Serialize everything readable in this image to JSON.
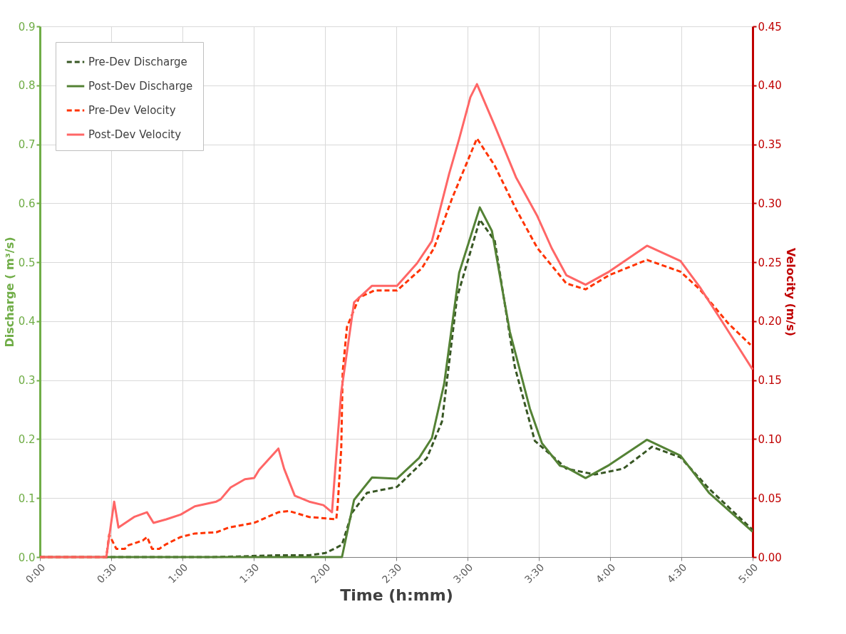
{
  "chart_data": {
    "type": "line",
    "xlabel": "Time (h:mm)",
    "ylabel": "Discharge ( m³/s)",
    "y2label": "Velocity (m/s)",
    "xlim": [
      0,
      5
    ],
    "xticks": [
      {
        "value": 0,
        "label": "0:00"
      },
      {
        "value": 0.5,
        "label": "0:30"
      },
      {
        "value": 1,
        "label": "1:00"
      },
      {
        "value": 1.5,
        "label": "1:30"
      },
      {
        "value": 2,
        "label": "2:00"
      },
      {
        "value": 2.5,
        "label": "2:30"
      },
      {
        "value": 3,
        "label": "3:00"
      },
      {
        "value": 3.5,
        "label": "3:30"
      },
      {
        "value": 4,
        "label": "4:00"
      },
      {
        "value": 4.5,
        "label": "4:30"
      },
      {
        "value": 5,
        "label": "5:00"
      }
    ],
    "ylim": [
      0,
      0.9
    ],
    "yticks": [
      {
        "value": 0,
        "label": "0.0"
      },
      {
        "value": 0.1,
        "label": "0.1"
      },
      {
        "value": 0.2,
        "label": "0.2"
      },
      {
        "value": 0.3,
        "label": "0.3"
      },
      {
        "value": 0.4,
        "label": "0.4"
      },
      {
        "value": 0.5,
        "label": "0.5"
      },
      {
        "value": 0.6,
        "label": "0.6"
      },
      {
        "value": 0.7,
        "label": "0.7"
      },
      {
        "value": 0.8,
        "label": "0.8"
      },
      {
        "value": 0.9,
        "label": "0.9"
      }
    ],
    "y2lim": [
      0,
      0.45
    ],
    "y2ticks": [
      {
        "value": 0,
        "label": "0.00"
      },
      {
        "value": 0.05,
        "label": "0.05"
      },
      {
        "value": 0.1,
        "label": "0.10"
      },
      {
        "value": 0.15,
        "label": "0.15"
      },
      {
        "value": 0.2,
        "label": "0.20"
      },
      {
        "value": 0.25,
        "label": "0.25"
      },
      {
        "value": 0.3,
        "label": "0.30"
      },
      {
        "value": 0.35,
        "label": "0.35"
      },
      {
        "value": 0.4,
        "label": "0.40"
      },
      {
        "value": 0.45,
        "label": "0.45"
      }
    ],
    "grid": true,
    "legend": "top left",
    "marker": "none",
    "series": [
      {
        "name": "Pre-Dev Discharge",
        "color": "#375623",
        "line_style": "dashed",
        "x": [
          0,
          1.2,
          1.388,
          1.653,
          1.889,
          2.004,
          2.089,
          2.119,
          2.189,
          2.295,
          2.505,
          2.715,
          2.821,
          2.926,
          3.086,
          3.191,
          3.332,
          3.472,
          3.648,
          3.693,
          3.893,
          4.093,
          4.294,
          4.494,
          4.694,
          5.0
        ],
        "values": [
          0,
          0,
          0.001,
          0.003,
          0.003,
          0.007,
          0.017,
          0.021,
          0.075,
          0.109,
          0.119,
          0.168,
          0.23,
          0.44,
          0.572,
          0.536,
          0.322,
          0.197,
          0.16,
          0.15,
          0.14,
          0.15,
          0.187,
          0.169,
          0.116,
          0.046
        ]
      },
      {
        "name": "Post-Dev Discharge",
        "color": "#548235",
        "line_style": "solid",
        "x": [
          0,
          2.119,
          2.204,
          2.33,
          2.505,
          2.66,
          2.75,
          2.836,
          2.941,
          3.086,
          3.171,
          3.297,
          3.437,
          3.522,
          3.648,
          3.693,
          3.828,
          3.993,
          4.259,
          4.494,
          4.694,
          5.0
        ],
        "values": [
          0,
          0,
          0.097,
          0.135,
          0.133,
          0.168,
          0.202,
          0.294,
          0.482,
          0.593,
          0.553,
          0.382,
          0.252,
          0.193,
          0.155,
          0.152,
          0.134,
          0.156,
          0.199,
          0.172,
          0.109,
          0.043
        ]
      },
      {
        "name": "Pre-Dev Velocity",
        "color": "#ff3300",
        "line_style": "dashed",
        "axis": "y2",
        "x": [
          0,
          0.466,
          0.486,
          0.536,
          0.596,
          0.621,
          0.721,
          0.752,
          0.787,
          0.837,
          0.887,
          0.987,
          1.087,
          1.237,
          1.323,
          1.503,
          1.673,
          1.748,
          1.889,
          2.079,
          2.089,
          2.114,
          2.124,
          2.154,
          2.239,
          2.345,
          2.505,
          2.68,
          2.765,
          2.891,
          3.066,
          3.19,
          3.34,
          3.49,
          3.693,
          3.828,
          3.993,
          4.259,
          4.494,
          4.629,
          4.83,
          4.985
        ],
        "values": [
          0,
          0,
          0.019,
          0.007,
          0.007,
          0.01,
          0.014,
          0.017,
          0.007,
          0.007,
          0.011,
          0.017,
          0.02,
          0.021,
          0.025,
          0.029,
          0.038,
          0.039,
          0.034,
          0.032,
          0.044,
          0.092,
          0.157,
          0.195,
          0.22,
          0.226,
          0.226,
          0.245,
          0.262,
          0.304,
          0.355,
          0.332,
          0.295,
          0.262,
          0.232,
          0.227,
          0.239,
          0.252,
          0.242,
          0.227,
          0.198,
          0.18
        ]
      },
      {
        "name": "Post-Dev Velocity",
        "color": "#ff6666",
        "line_style": "solid",
        "axis": "y2",
        "x": [
          0,
          0.466,
          0.521,
          0.551,
          0.661,
          0.751,
          0.797,
          0.887,
          0.987,
          1.087,
          1.237,
          1.268,
          1.338,
          1.438,
          1.503,
          1.538,
          1.673,
          1.713,
          1.788,
          1.889,
          1.989,
          2.049,
          2.079,
          2.114,
          2.204,
          2.33,
          2.505,
          2.645,
          2.75,
          2.871,
          2.94,
          3.02,
          3.066,
          3.19,
          3.34,
          3.49,
          3.59,
          3.693,
          3.828,
          3.993,
          4.259,
          4.494,
          4.629,
          4.795,
          5.0
        ],
        "values": [
          0,
          0,
          0.047,
          0.025,
          0.034,
          0.038,
          0.029,
          0.032,
          0.036,
          0.043,
          0.047,
          0.049,
          0.059,
          0.066,
          0.067,
          0.074,
          0.092,
          0.075,
          0.052,
          0.047,
          0.044,
          0.038,
          0.086,
          0.14,
          0.216,
          0.23,
          0.23,
          0.249,
          0.268,
          0.325,
          0.354,
          0.39,
          0.401,
          0.366,
          0.322,
          0.289,
          0.262,
          0.239,
          0.231,
          0.242,
          0.264,
          0.251,
          0.229,
          0.198,
          0.159
        ]
      }
    ]
  }
}
